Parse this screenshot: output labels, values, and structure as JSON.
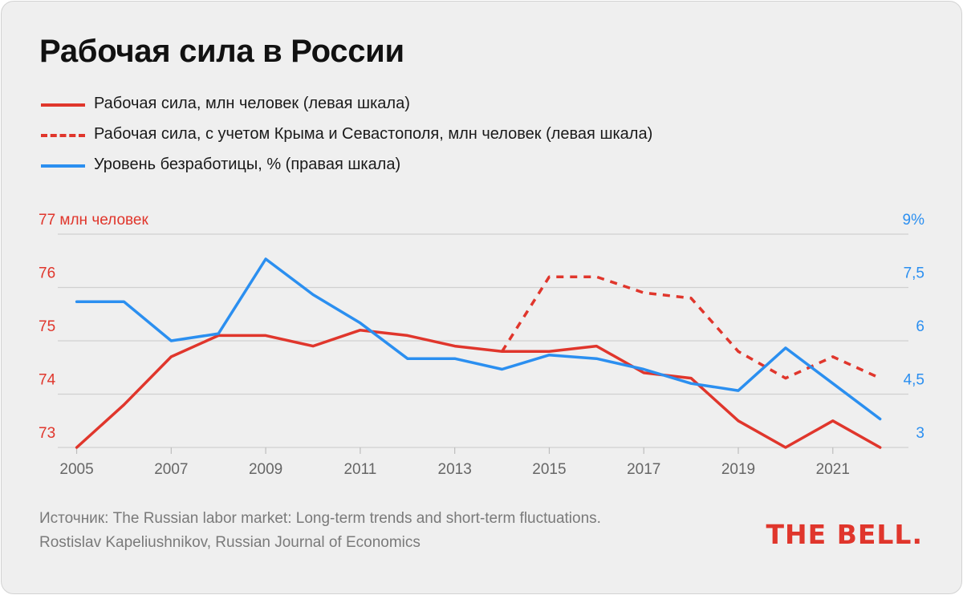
{
  "title": "Рабочая сила в России",
  "legend": [
    {
      "label": "Рабочая сила, млн человек (левая шкала)",
      "color": "#e0362c",
      "style": "solid"
    },
    {
      "label": "Рабочая сила, с учетом Крыма и Севастополя, млн человек (левая шкала)",
      "color": "#e0362c",
      "style": "dashed"
    },
    {
      "label": "Уровень безработицы, % (правая шкала)",
      "color": "#2b8ff0",
      "style": "solid"
    }
  ],
  "source": "Источник: The Russian labor market: Long-term trends and short-term fluctuations. Rostislav Kapeliushnikov, Russian Journal of Economics",
  "brand": "THE BELL.",
  "chart_data": {
    "type": "line",
    "colors": {
      "labor": "#e0362c",
      "unemployment": "#2b8ff0",
      "grid": "#d0d0d0",
      "tick": "#666666"
    },
    "x_ticks": [
      "2005",
      "2007",
      "2009",
      "2011",
      "2013",
      "2015",
      "2017",
      "2019",
      "2021"
    ],
    "xlim": [
      2004.6,
      2022.6
    ],
    "y_left": {
      "label": "77 млн человек",
      "ticks": [
        "76",
        "75",
        "74",
        "73"
      ],
      "ylim": [
        73,
        77
      ]
    },
    "y_right": {
      "ticks": [
        "9%",
        "7,5",
        "6",
        "4,5",
        "3"
      ],
      "ylim": [
        3,
        9
      ]
    },
    "grid": true,
    "series": [
      {
        "name": "Рабочая сила, млн человек (левая шкала)",
        "axis": "left",
        "style": "solid",
        "color": "#e0362c",
        "x": [
          2005,
          2006,
          2007,
          2008,
          2009,
          2010,
          2011,
          2012,
          2013,
          2014,
          2015,
          2016,
          2017,
          2018,
          2019,
          2020,
          2021,
          2022
        ],
        "y": [
          73.0,
          73.8,
          74.7,
          75.1,
          75.1,
          74.9,
          75.2,
          75.1,
          74.9,
          74.8,
          74.8,
          74.9,
          74.4,
          74.3,
          73.5,
          73.0,
          73.5,
          73.0
        ]
      },
      {
        "name": "Рабочая сила, с учетом Крыма и Севастополя, млн человек (левая шкала)",
        "axis": "left",
        "style": "dashed",
        "color": "#e0362c",
        "x": [
          2014,
          2015,
          2016,
          2017,
          2018,
          2019,
          2020,
          2021,
          2022
        ],
        "y": [
          74.8,
          76.2,
          76.2,
          75.9,
          75.8,
          74.8,
          74.3,
          74.7,
          74.3
        ]
      },
      {
        "name": "Уровень безработицы, % (правая шкала)",
        "axis": "right",
        "style": "solid",
        "color": "#2b8ff0",
        "x": [
          2005,
          2006,
          2007,
          2008,
          2009,
          2010,
          2011,
          2012,
          2013,
          2014,
          2015,
          2016,
          2017,
          2018,
          2019,
          2020,
          2021,
          2022
        ],
        "y": [
          7.1,
          7.1,
          6.0,
          6.2,
          8.3,
          7.3,
          6.5,
          5.5,
          5.5,
          5.2,
          5.6,
          5.5,
          5.2,
          4.8,
          4.6,
          5.8,
          4.8,
          3.8
        ]
      }
    ]
  }
}
